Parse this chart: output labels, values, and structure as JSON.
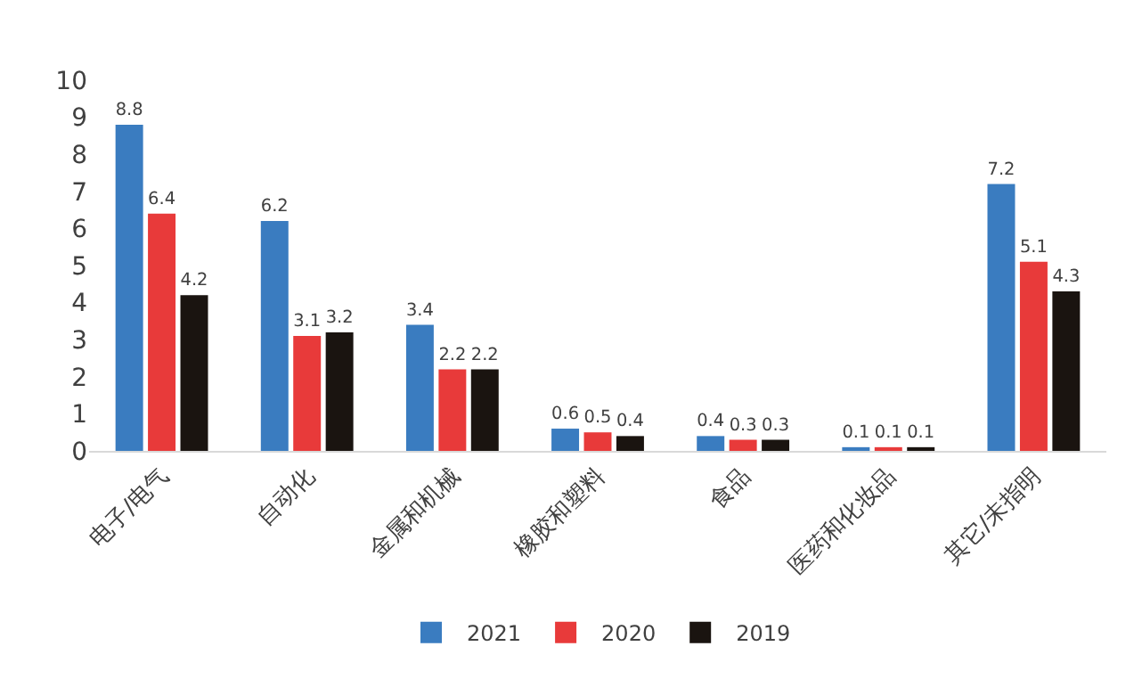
{
  "chart_data": {
    "type": "bar",
    "categories": [
      "电子/电气",
      "自动化",
      "金属和机械",
      "橡胶和塑料",
      "食品",
      "医药和化妆品",
      "其它/未指明"
    ],
    "series": [
      {
        "name": "2021",
        "color": "#3a7cc0",
        "values": [
          8.8,
          6.2,
          3.4,
          0.6,
          0.4,
          0.1,
          7.2
        ]
      },
      {
        "name": "2020",
        "color": "#e83a3a",
        "values": [
          6.4,
          3.1,
          2.2,
          0.5,
          0.3,
          0.1,
          5.1
        ]
      },
      {
        "name": "2019",
        "color": "#1a1410",
        "values": [
          4.2,
          3.2,
          2.2,
          0.4,
          0.3,
          0.1,
          4.3
        ]
      }
    ],
    "ylim": [
      0,
      10
    ],
    "yticks": [
      0,
      1,
      2,
      3,
      4,
      5,
      6,
      7,
      8,
      9,
      10
    ],
    "data_labels": true,
    "legend": "bottom"
  }
}
